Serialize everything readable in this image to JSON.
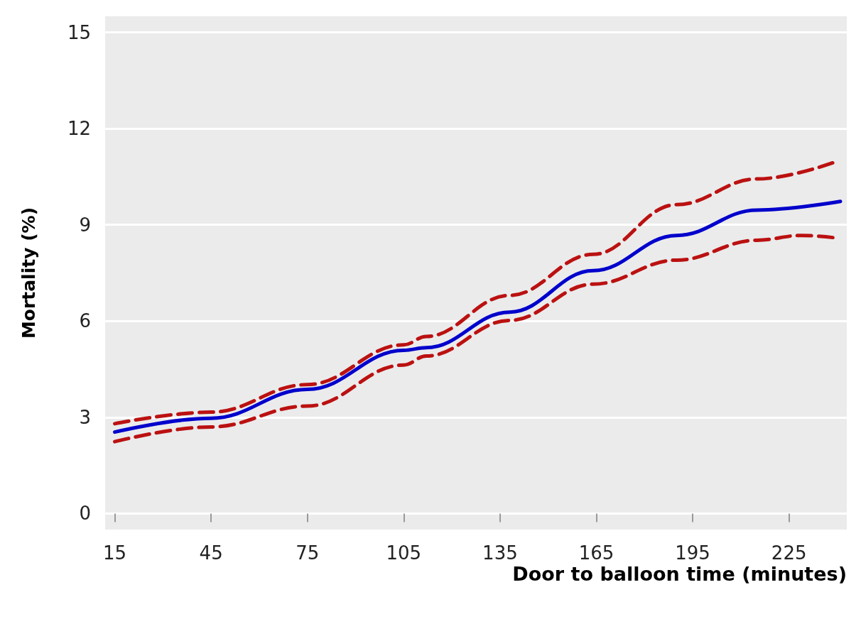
{
  "chart_data": {
    "type": "line",
    "xlabel": "Door to balloon time (minutes)",
    "ylabel": "Mortality (%)",
    "xlim": [
      12,
      243
    ],
    "xticks": [
      15,
      45,
      75,
      105,
      135,
      165,
      195,
      225
    ],
    "ylim": [
      -0.5,
      15.5
    ],
    "yticks": [
      0,
      3,
      6,
      9,
      12,
      15
    ],
    "grid": "y",
    "marker": "none",
    "series": [
      {
        "color": "#bb1111",
        "line_style": "dashed",
        "x": [
          15,
          45,
          75,
          105,
          112,
          138,
          164,
          190,
          215,
          240
        ],
        "values": [
          2.8,
          3.16,
          4.02,
          5.26,
          5.52,
          6.8,
          8.08,
          9.63,
          10.43,
          10.98
        ]
      },
      {
        "color": "#bb1111",
        "line_style": "dashed",
        "x": [
          15,
          45,
          75,
          105,
          112,
          138,
          164,
          190,
          215,
          229,
          239
        ],
        "values": [
          2.24,
          2.7,
          3.35,
          4.63,
          4.91,
          6.02,
          7.15,
          7.9,
          8.52,
          8.67,
          8.6
        ]
      },
      {
        "color": "#0000cc",
        "line_style": "solid",
        "x": [
          15,
          45,
          75,
          105,
          112,
          138,
          164,
          190,
          215,
          241
        ],
        "values": [
          2.54,
          2.97,
          3.87,
          5.09,
          5.17,
          6.28,
          7.57,
          8.67,
          9.46,
          9.73
        ]
      }
    ]
  }
}
